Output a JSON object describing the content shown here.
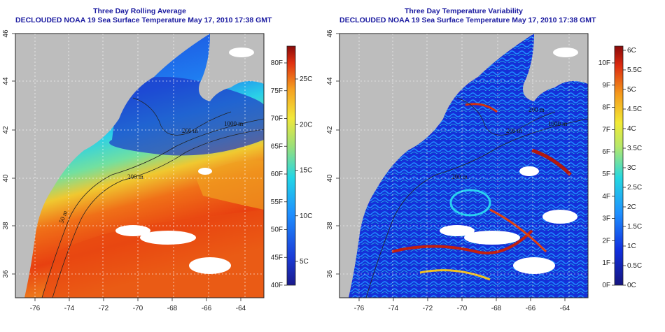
{
  "panels": [
    {
      "id": "avg",
      "title_line1": "Three Day Rolling Average",
      "title_line2": "DECLOUDED NOAA 19 Sea Surface Temperature May 17, 2010 17:38 GMT",
      "colorbar_f": [
        "80F",
        "75F",
        "70F",
        "65F",
        "60F",
        "55F",
        "50F",
        "45F",
        "40F"
      ],
      "colorbar_c": [
        "25C",
        "20C",
        "15C",
        "10C",
        "5C"
      ]
    },
    {
      "id": "var",
      "title_line1": "Three Day Temperature Variability",
      "title_line2": "DECLOUDED NOAA 19 Sea Surface Temperature May 17, 2010 17:38 GMT",
      "colorbar_f": [
        "10F",
        "9F",
        "8F",
        "7F",
        "6F",
        "5F",
        "4F",
        "3F",
        "2F",
        "1F",
        "0F"
      ],
      "colorbar_c": [
        "6C",
        "5.5C",
        "5C",
        "4.5C",
        "4C",
        "3.5C",
        "3C",
        "2.5C",
        "2C",
        "1.5C",
        "1C",
        "0.5C",
        "0C"
      ]
    }
  ],
  "map": {
    "lon_ticks": [
      "-76",
      "-74",
      "-72",
      "-70",
      "-68",
      "-66",
      "-64"
    ],
    "lat_ticks": [
      "46",
      "44",
      "42",
      "40",
      "38",
      "36"
    ],
    "contour_labels": [
      "200 m",
      "1000 m",
      "50 m",
      "200 m",
      "200 m",
      "1000 m",
      "200 m",
      "200 m"
    ]
  },
  "colors": {
    "land": "#bdbdbd",
    "cloud": "#ffffff",
    "title": "#1a1aa0"
  }
}
